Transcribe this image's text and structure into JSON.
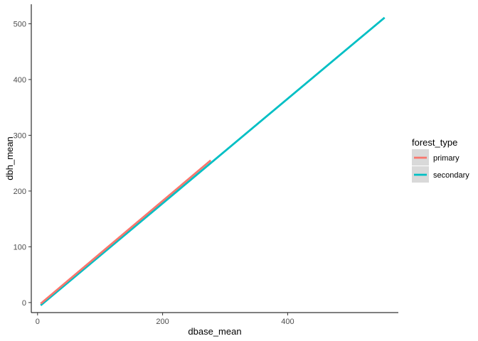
{
  "chart_data": {
    "type": "line",
    "title": "",
    "xlabel": "dbase_mean",
    "ylabel": "dbh_mean",
    "xlim": [
      -10,
      577
    ],
    "ylim": [
      -18,
      535
    ],
    "x_ticks": [
      0,
      200,
      400
    ],
    "y_ticks": [
      0,
      100,
      200,
      300,
      400,
      500
    ],
    "grid": false,
    "legend": {
      "title": "forest_type",
      "placement": "right"
    },
    "series": [
      {
        "name": "primary",
        "color": "#F8766D",
        "x": [
          5,
          277
        ],
        "y": [
          -2,
          255
        ]
      },
      {
        "name": "secondary",
        "color": "#00BFC4",
        "x": [
          5,
          555
        ],
        "y": [
          -5,
          511
        ]
      }
    ]
  }
}
